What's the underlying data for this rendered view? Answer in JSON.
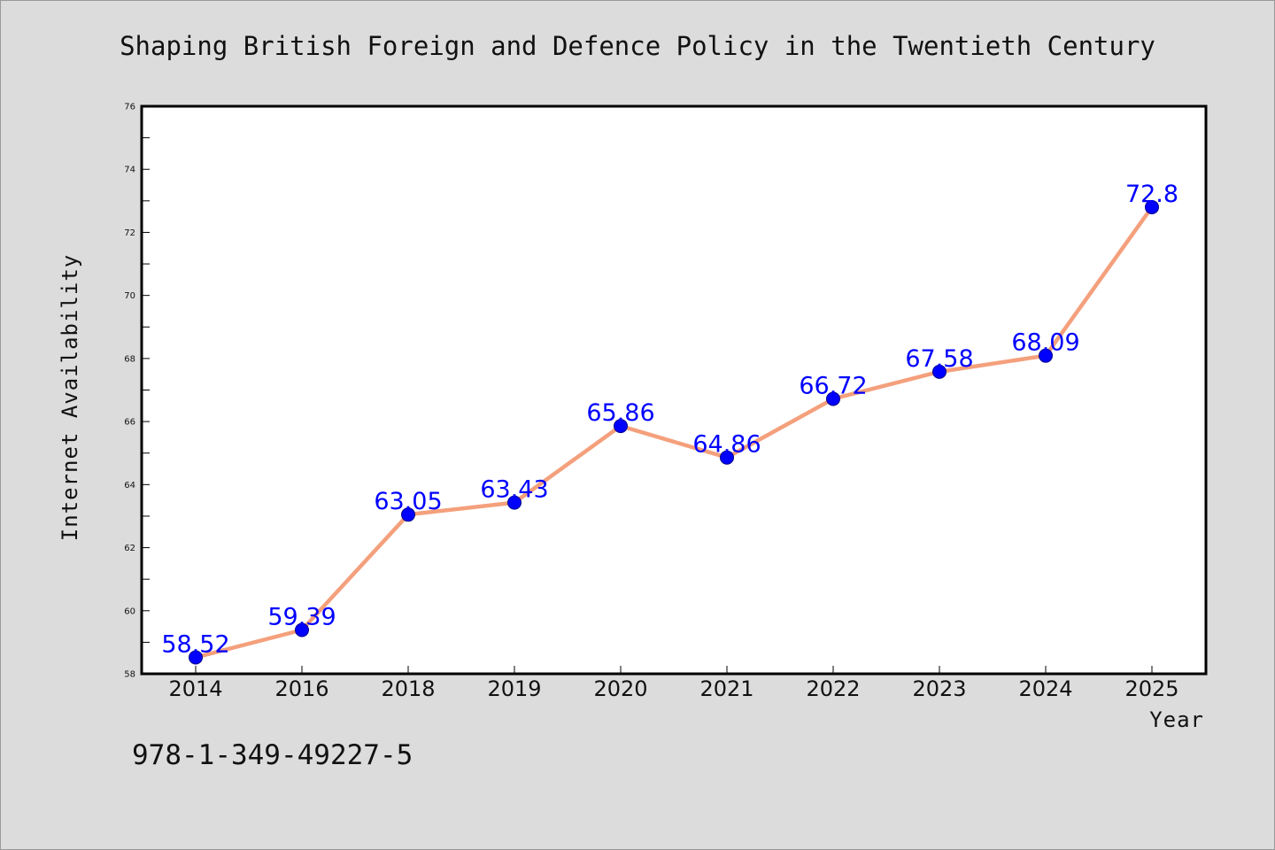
{
  "footer": {
    "isbn": "978-1-349-49227-5"
  },
  "chart_data": {
    "type": "line",
    "title": "Shaping British Foreign and Defence Policy in the Twentieth Century",
    "xlabel": "Year",
    "ylabel": "Internet Availability",
    "categories": [
      "2014",
      "2016",
      "2018",
      "2019",
      "2020",
      "2021",
      "2022",
      "2023",
      "2024",
      "2025"
    ],
    "values": [
      58.52,
      59.39,
      63.05,
      63.43,
      65.86,
      64.86,
      66.72,
      67.58,
      68.09,
      72.8
    ],
    "data_labels": [
      "58.52",
      "59.39",
      "63.05",
      "63.43",
      "65.86",
      "64.86",
      "66.72",
      "67.58",
      "68.09",
      "72.8"
    ],
    "ylim": [
      58,
      76
    ],
    "yticks": [
      58,
      60,
      62,
      64,
      66,
      68,
      70,
      72,
      74,
      76
    ],
    "grid": false,
    "line_color": "#f4a07c",
    "marker_color": "#0000ff",
    "label_color": "#0000ff"
  }
}
